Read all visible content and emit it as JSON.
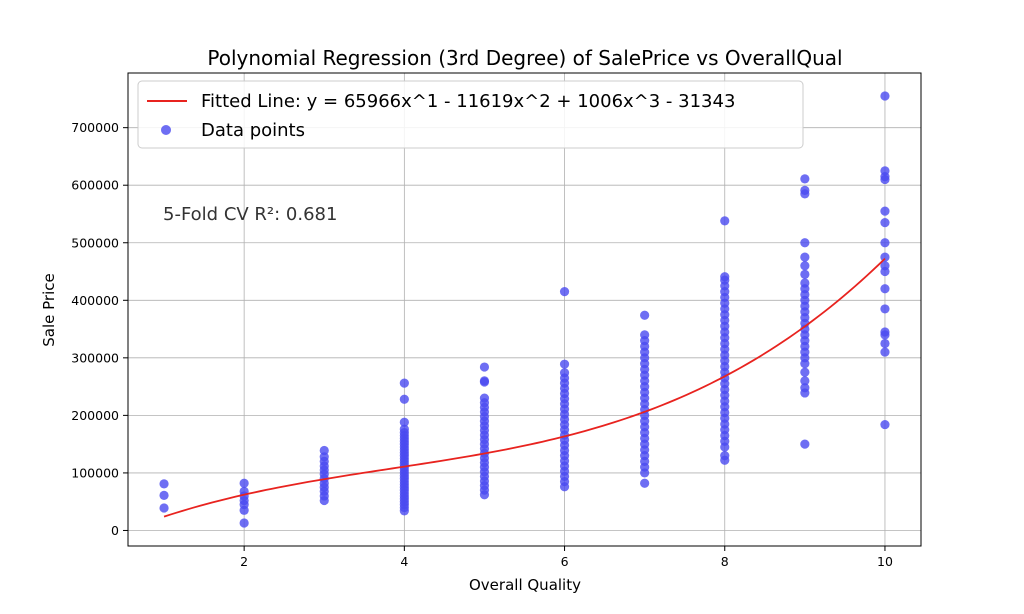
{
  "chart_data": {
    "type": "scatter",
    "title": "Polynomial Regression (3rd Degree) of SalePrice vs OverallQual",
    "xlabel": "Overall Quality",
    "ylabel": "Sale Price",
    "xlim": [
      0.55,
      10.45
    ],
    "ylim": [
      -27000,
      795000
    ],
    "xticks": [
      2,
      4,
      6,
      8,
      10
    ],
    "yticks": [
      0,
      100000,
      200000,
      300000,
      400000,
      500000,
      600000,
      700000
    ],
    "grid": true,
    "legend_position": "top-left",
    "annotation": "5-Fold CV R²: 0.681",
    "colors": {
      "points": "#4a4af0",
      "line": "#e8231f"
    },
    "series": [
      {
        "name": "Fitted Line: y = 65966x^1 - 11619x^2 + 1006x^3 - 31343",
        "kind": "line",
        "coefficients": {
          "c0": -31343,
          "c1": 65966,
          "c2": -11619,
          "c3": 1006
        },
        "x_range": [
          1,
          10
        ]
      },
      {
        "name": "Data points",
        "kind": "scatter",
        "groups": [
          {
            "x": 1,
            "y": [
              39000,
              61000,
              81000
            ]
          },
          {
            "x": 2,
            "y": [
              13000,
              35000,
              45000,
              52000,
              60000,
              68000,
              82000
            ]
          },
          {
            "x": 3,
            "y": [
              52000,
              60000,
              68000,
              75000,
              82000,
              90000,
              98000,
              105000,
              112000,
              120000,
              128000,
              139000
            ]
          },
          {
            "x": 4,
            "y": [
              34000,
              40000,
              45000,
              50000,
              55000,
              60000,
              65000,
              70000,
              75000,
              80000,
              85000,
              90000,
              95000,
              100000,
              105000,
              110000,
              115000,
              120000,
              125000,
              130000,
              135000,
              140000,
              145000,
              150000,
              155000,
              160000,
              165000,
              170000,
              176000,
              188000,
              228000,
              256000
            ]
          },
          {
            "x": 5,
            "y": [
              62000,
              70000,
              78000,
              86000,
              94000,
              102000,
              110000,
              118000,
              126000,
              134000,
              142000,
              150000,
              158000,
              166000,
              174000,
              182000,
              190000,
              198000,
              206000,
              214000,
              222000,
              230000,
              258000,
              260000,
              284000
            ]
          },
          {
            "x": 6,
            "y": [
              76000,
              85000,
              94000,
              103000,
              112000,
              121000,
              130000,
              139000,
              148000,
              157000,
              166000,
              175000,
              184000,
              193000,
              202000,
              211000,
              220000,
              229000,
              238000,
              247000,
              256000,
              265000,
              274000,
              289000,
              415000
            ]
          },
          {
            "x": 7,
            "y": [
              82000,
              100000,
              110000,
              120000,
              130000,
              140000,
              150000,
              160000,
              170000,
              180000,
              190000,
              200000,
              210000,
              220000,
              230000,
              240000,
              250000,
              260000,
              270000,
              280000,
              290000,
              300000,
              310000,
              320000,
              330000,
              340000,
              374000
            ]
          },
          {
            "x": 8,
            "y": [
              122000,
              130000,
              145000,
              155000,
              165000,
              175000,
              185000,
              195000,
              205000,
              215000,
              225000,
              235000,
              245000,
              255000,
              265000,
              275000,
              285000,
              295000,
              305000,
              315000,
              325000,
              335000,
              345000,
              355000,
              365000,
              375000,
              385000,
              395000,
              405000,
              415000,
              425000,
              435000,
              441000,
              538000
            ]
          },
          {
            "x": 9,
            "y": [
              150000,
              239000,
              248000,
              260000,
              275000,
              290000,
              300000,
              310000,
              320000,
              330000,
              340000,
              350000,
              360000,
              370000,
              380000,
              390000,
              400000,
              410000,
              420000,
              430000,
              445000,
              460000,
              475000,
              500000,
              585000,
              591000,
              611000
            ]
          },
          {
            "x": 10,
            "y": [
              184000,
              310000,
              325000,
              340000,
              345000,
              385000,
              420000,
              450000,
              460000,
              475000,
              500000,
              535000,
              555000,
              610000,
              615000,
              625000,
              755000
            ]
          }
        ]
      }
    ]
  }
}
